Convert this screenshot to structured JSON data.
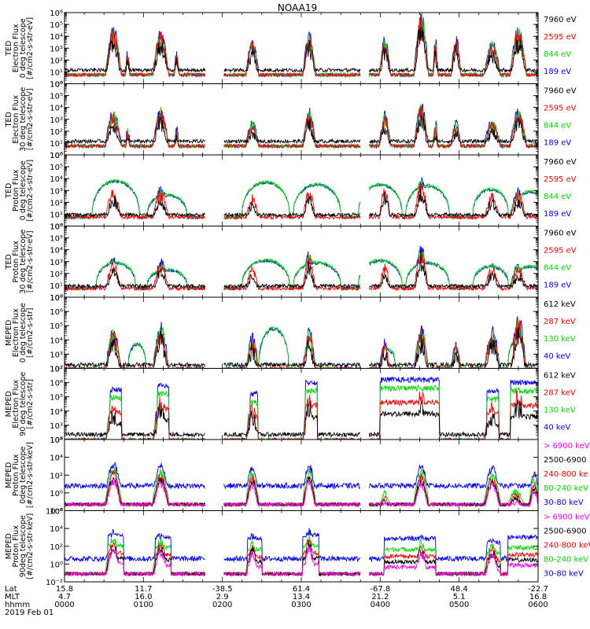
{
  "chart_data": {
    "type": "line",
    "title": "NOAA19",
    "date_label": "2019 Feb 01",
    "x_axis": {
      "row_labels": [
        "Lat",
        "MLT",
        "hhmm"
      ],
      "ticks": [
        {
          "lat": "15.8",
          "mlt": "4.7",
          "hhmm": "0000"
        },
        {
          "lat": "11.7",
          "mlt": "16.0",
          "hhmm": "0100"
        },
        {
          "lat": "-38.5",
          "mlt": "2.9",
          "hhmm": "0200"
        },
        {
          "lat": "61.4",
          "mlt": "13.4",
          "hhmm": "0300"
        },
        {
          "lat": "-67.8",
          "mlt": "21.2",
          "hhmm": "0400"
        },
        {
          "lat": "48.4",
          "mlt": "5.1",
          "hhmm": "0500"
        },
        {
          "lat": "-22.7",
          "mlt": "16.8",
          "hhmm": "0600"
        }
      ],
      "range_hours": [
        0,
        6
      ]
    },
    "panels": [
      {
        "ylabel_lines": [
          "TED",
          "Electron Flux",
          "0 deg telescope",
          "[#/cm2-s-str-eV]"
        ],
        "yscale": "log",
        "ylim_exp": [
          0,
          6
        ],
        "tick_labels": [
          "10⁰",
          "10¹",
          "10²",
          "10³",
          "10⁴",
          "10⁵",
          "10⁶"
        ],
        "series": [
          {
            "name": "7960 eV",
            "color": "#000000"
          },
          {
            "name": "2595 eV",
            "color": "#ff0000"
          },
          {
            "name": "844 eV",
            "color": "#00dd00"
          },
          {
            "name": "189 eV",
            "color": "#0000ff"
          }
        ],
        "bursts": [
          [
            0.62,
            0.1,
            5.0,
            1.0
          ],
          [
            0.8,
            0.04,
            3.0,
            0.0
          ],
          [
            1.22,
            0.1,
            4.8,
            1.0
          ],
          [
            1.42,
            0.04,
            3.0,
            0.0
          ],
          [
            2.38,
            0.08,
            4.0,
            1.0
          ],
          [
            3.1,
            0.08,
            4.5,
            1.0
          ],
          [
            4.06,
            0.07,
            4.2,
            1.0
          ],
          [
            4.52,
            0.09,
            6.3,
            1.2
          ],
          [
            4.7,
            0.04,
            4.0,
            0.0
          ],
          [
            4.96,
            0.06,
            4.2,
            1.0
          ],
          [
            5.42,
            0.1,
            3.8,
            1.0
          ],
          [
            5.75,
            0.1,
            5.0,
            1.2
          ]
        ],
        "floor": {
          "black": 1.0,
          "colors": 1.0
        }
      },
      {
        "ylabel_lines": [
          "TED",
          "Electron Flux",
          "30 deg telescope",
          "[#/cm2-s-str-eV]"
        ],
        "yscale": "log",
        "ylim_exp": [
          0,
          6
        ],
        "tick_labels": [
          "10⁰",
          "10¹",
          "10²",
          "10³",
          "10⁴",
          "10⁵",
          "10⁶"
        ],
        "series": [
          {
            "name": "7960 eV",
            "color": "#000000"
          },
          {
            "name": "2595 eV",
            "color": "#ff0000"
          },
          {
            "name": "844 eV",
            "color": "#00dd00"
          },
          {
            "name": "189 eV",
            "color": "#0000ff"
          }
        ],
        "bursts": [
          [
            0.62,
            0.1,
            4.0,
            1.0
          ],
          [
            0.8,
            0.04,
            2.5,
            0.0
          ],
          [
            1.22,
            0.1,
            4.2,
            1.0
          ],
          [
            1.42,
            0.04,
            2.5,
            0.0
          ],
          [
            2.38,
            0.08,
            3.0,
            1.0
          ],
          [
            3.1,
            0.08,
            4.0,
            1.0
          ],
          [
            4.06,
            0.07,
            3.8,
            1.0
          ],
          [
            4.52,
            0.09,
            4.5,
            1.0
          ],
          [
            4.7,
            0.04,
            3.0,
            0.0
          ],
          [
            4.96,
            0.06,
            3.0,
            1.0
          ],
          [
            5.42,
            0.1,
            3.2,
            1.0
          ],
          [
            5.75,
            0.1,
            4.0,
            1.2
          ]
        ],
        "floor": {
          "black": 1.0,
          "colors": 1.0
        }
      },
      {
        "ylabel_lines": [
          "TED",
          "Proton Flux",
          "0 deg telescope",
          "[#/cm2-s-str-eV]"
        ],
        "yscale": "log",
        "ylim_exp": [
          0,
          6
        ],
        "tick_labels": [
          "10⁰",
          "10¹",
          "10²",
          "10³",
          "10⁴",
          "10⁵",
          "10⁶"
        ],
        "series": [
          {
            "name": "7960 eV",
            "color": "#000000"
          },
          {
            "name": "2595 eV",
            "color": "#ff0000"
          },
          {
            "name": "844 eV",
            "color": "#00dd00"
          },
          {
            "name": "189 eV",
            "color": "#0000ff"
          }
        ],
        "arcs": [
          [
            0.65,
            0.6,
            2.7
          ],
          [
            1.3,
            0.5,
            1.5
          ],
          [
            2.55,
            0.6,
            2.6
          ],
          [
            3.2,
            0.6,
            2.4
          ],
          [
            4.0,
            0.55,
            2.4
          ],
          [
            4.6,
            0.55,
            2.3
          ],
          [
            5.4,
            0.45,
            2.0
          ],
          [
            5.9,
            0.4,
            1.8
          ]
        ],
        "bursts": [
          [
            0.62,
            0.1,
            3.6,
            1.0
          ],
          [
            1.22,
            0.1,
            3.5,
            1.0
          ],
          [
            2.38,
            0.08,
            3.0,
            1.0
          ],
          [
            3.1,
            0.08,
            3.5,
            1.0
          ],
          [
            4.06,
            0.07,
            3.8,
            1.0
          ],
          [
            4.52,
            0.09,
            4.2,
            1.0
          ],
          [
            5.42,
            0.1,
            3.2,
            1.0
          ],
          [
            5.75,
            0.1,
            3.3,
            1.0
          ]
        ],
        "floor": {
          "black": 0.8,
          "colors": 1.0
        }
      },
      {
        "ylabel_lines": [
          "TED",
          "Proton Flux",
          "30 deg telescope",
          "[#/cm2-s-str-eV]"
        ],
        "yscale": "log",
        "ylim_exp": [
          0,
          6
        ],
        "tick_labels": [
          "10⁰",
          "10¹",
          "10²",
          "10³",
          "10⁴",
          "10⁵",
          "10⁶"
        ],
        "series": [
          {
            "name": "7960 eV",
            "color": "#000000"
          },
          {
            "name": "2595 eV",
            "color": "#ff0000"
          },
          {
            "name": "844 eV",
            "color": "#00dd00"
          },
          {
            "name": "189 eV",
            "color": "#0000ff"
          }
        ],
        "arcs": [
          [
            0.65,
            0.5,
            1.8
          ],
          [
            1.3,
            0.5,
            1.2
          ],
          [
            2.55,
            0.6,
            2.0
          ],
          [
            3.2,
            0.6,
            1.8
          ],
          [
            4.0,
            0.55,
            2.0
          ],
          [
            4.6,
            0.55,
            1.8
          ],
          [
            5.4,
            0.45,
            1.5
          ],
          [
            5.9,
            0.4,
            1.5
          ]
        ],
        "bursts": [
          [
            0.62,
            0.1,
            3.5,
            1.0
          ],
          [
            1.22,
            0.1,
            3.3,
            1.0
          ],
          [
            2.38,
            0.08,
            3.0,
            1.0
          ],
          [
            3.1,
            0.08,
            4.0,
            1.0
          ],
          [
            4.06,
            0.07,
            3.2,
            1.0
          ],
          [
            4.52,
            0.09,
            4.5,
            1.0
          ],
          [
            5.42,
            0.1,
            3.0,
            1.0
          ],
          [
            5.75,
            0.1,
            3.0,
            1.0
          ]
        ],
        "floor": {
          "black": 0.8,
          "colors": 1.0
        }
      },
      {
        "ylabel_lines": [
          "MEPED",
          "Electron Flux",
          "0 deg telescope",
          "[#/cm2-s-str]"
        ],
        "yscale": "log",
        "ylim_exp": [
          2,
          7
        ],
        "tick_labels": [
          "10²",
          "10³",
          "10⁴",
          "10⁵",
          "10⁶",
          "10⁷"
        ],
        "series": [
          {
            "name": "612 keV",
            "color": "#000000"
          },
          {
            "name": "287 keV",
            "color": "#ff0000"
          },
          {
            "name": "130 keV",
            "color": "#00dd00"
          },
          {
            "name": "40 keV",
            "color": "#0000ff"
          }
        ],
        "arcs": [
          [
            0.92,
            0.22,
            1.4
          ],
          [
            2.65,
            0.38,
            2.5
          ],
          [
            4.1,
            0.18,
            1.0
          ],
          [
            5.72,
            0.2,
            1.6
          ]
        ],
        "bursts": [
          [
            0.62,
            0.1,
            5.0,
            2.0
          ],
          [
            1.22,
            0.1,
            5.4,
            2.0
          ],
          [
            2.38,
            0.08,
            4.5,
            2.0
          ],
          [
            3.1,
            0.08,
            5.0,
            2.0
          ],
          [
            4.06,
            0.07,
            4.2,
            2.0
          ],
          [
            4.52,
            0.09,
            5.2,
            2.0
          ],
          [
            4.96,
            0.06,
            4.0,
            2.0
          ],
          [
            5.42,
            0.1,
            5.0,
            2.0
          ],
          [
            5.75,
            0.1,
            6.0,
            2.0
          ]
        ],
        "floor": {
          "black": 2.1,
          "colors": 2.2
        }
      },
      {
        "ylabel_lines": [
          "MEPED",
          "Electron Flux",
          "90 deg telescope",
          "[#/cm2-s-str]"
        ],
        "yscale": "log",
        "ylim_exp": [
          2,
          7
        ],
        "tick_labels": [
          "10²",
          "10³",
          "10⁴",
          "10⁵",
          "10⁶",
          "10⁷"
        ],
        "series": [
          {
            "name": "612 keV",
            "color": "#000000"
          },
          {
            "name": "287 keV",
            "color": "#ff0000"
          },
          {
            "name": "130 keV",
            "color": "#00dd00"
          },
          {
            "name": "40 keV",
            "color": "#0000ff"
          }
        ],
        "plateaus": [
          [
            0.58,
            0.72,
            5.3
          ],
          [
            1.18,
            1.32,
            5.6
          ],
          [
            2.35,
            2.45,
            5.0
          ],
          [
            3.05,
            3.2,
            5.8
          ],
          [
            4.0,
            4.75,
            6.0
          ],
          [
            5.35,
            5.5,
            5.2
          ],
          [
            5.65,
            6.0,
            5.8
          ]
        ],
        "bursts": [
          [
            0.62,
            0.1,
            5.0,
            2.0
          ],
          [
            1.22,
            0.1,
            5.5,
            2.0
          ],
          [
            2.38,
            0.08,
            5.0,
            2.0
          ],
          [
            3.1,
            0.08,
            5.6,
            2.0
          ],
          [
            4.06,
            0.07,
            5.0,
            2.0
          ],
          [
            4.52,
            0.09,
            6.0,
            2.0
          ],
          [
            5.42,
            0.1,
            5.0,
            2.0
          ],
          [
            5.75,
            0.1,
            6.2,
            2.0
          ]
        ],
        "floor": {
          "black": 2.2,
          "colors": 2.2
        }
      },
      {
        "ylabel_lines": [
          "MEPED",
          "Proton Flux",
          "0deg telescope",
          "[#/cm2-s-str-keV]"
        ],
        "yscale": "log",
        "ylim_exp": [
          -2,
          6
        ],
        "tick_labels": [
          "10⁻²",
          "10⁰",
          "10²",
          "10⁴",
          "10⁶"
        ],
        "tick_exps": [
          -2,
          0,
          2,
          4,
          6
        ],
        "series": [
          {
            "name": "> 6900 keV",
            "color": "#ff00ff"
          },
          {
            "name": "2500-6900",
            "color": "#000000"
          },
          {
            "name": "240-800 ke",
            "color": "#ff0000"
          },
          {
            "name": "80-240 keV",
            "color": "#00dd00"
          },
          {
            "name": "30-80 keV",
            "color": "#0000ff"
          }
        ],
        "bursts": [
          [
            0.62,
            0.1,
            3.8,
            0.0
          ],
          [
            1.22,
            0.1,
            3.5,
            0.0
          ],
          [
            2.38,
            0.08,
            3.2,
            0.0
          ],
          [
            3.1,
            0.08,
            3.5,
            0.0
          ],
          [
            4.06,
            0.07,
            1.0,
            -1.0
          ],
          [
            4.52,
            0.09,
            3.5,
            0.0
          ],
          [
            5.42,
            0.1,
            3.2,
            0.0
          ],
          [
            5.72,
            0.12,
            1.2,
            -1.0
          ],
          [
            5.95,
            0.06,
            2.5,
            0.0
          ]
        ],
        "floor": {
          "blue": 0.5,
          "red": -1.2
        }
      },
      {
        "ylabel_lines": [
          "MEPED",
          "Proton Flux",
          "90deg telescope",
          "[#/cm2-s-str-keV]"
        ],
        "yscale": "log",
        "ylim_exp": [
          -2,
          6
        ],
        "tick_labels": [
          "10⁻²",
          "10⁰",
          "10²",
          "10⁴",
          "10⁶"
        ],
        "tick_exps": [
          -2,
          0,
          2,
          4,
          6
        ],
        "series": [
          {
            "name": "> 6900 keV",
            "color": "#ff00ff"
          },
          {
            "name": "2500-6900",
            "color": "#000000"
          },
          {
            "name": "240-800 keV",
            "color": "#ff0000"
          },
          {
            "name": "80-240 keV",
            "color": "#00dd00"
          },
          {
            "name": "30-80 keV",
            "color": "#0000ff"
          }
        ],
        "plateaus": [
          [
            0.55,
            0.75,
            3.8
          ],
          [
            1.15,
            1.35,
            3.6
          ],
          [
            2.32,
            2.5,
            3.4
          ],
          [
            3.02,
            3.22,
            3.8
          ],
          [
            4.05,
            4.7,
            3.4
          ],
          [
            5.35,
            5.52,
            3.0
          ],
          [
            5.62,
            6.0,
            3.6
          ]
        ],
        "bursts": [
          [
            0.62,
            0.1,
            4.0,
            0.0
          ],
          [
            1.22,
            0.1,
            3.8,
            0.0
          ],
          [
            2.38,
            0.08,
            3.5,
            0.0
          ],
          [
            3.1,
            0.08,
            4.2,
            0.0
          ],
          [
            4.52,
            0.09,
            3.6,
            0.0
          ],
          [
            5.42,
            0.1,
            3.2,
            0.0
          ]
        ],
        "floor": {
          "blue": 0.3,
          "red": -1.0
        }
      }
    ]
  }
}
